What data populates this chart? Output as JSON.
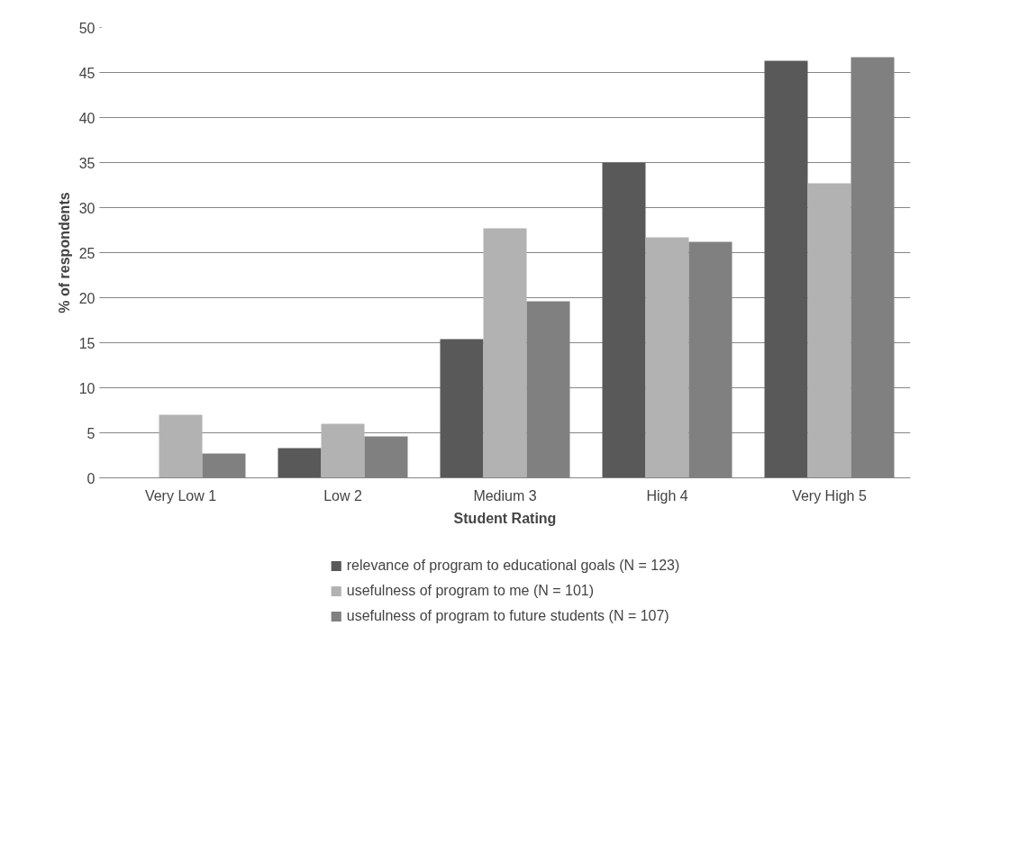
{
  "chart_data": {
    "type": "bar",
    "xlabel": "Student Rating",
    "ylabel": "% of respondents",
    "categories": [
      "Very Low 1",
      "Low 2",
      "Medium 3",
      "High 4",
      "Very High 5"
    ],
    "series": [
      {
        "name": "relevance of program to educational goals (N = 123)",
        "color": "#595959",
        "values": [
          0,
          3.3,
          15.4,
          35.0,
          46.3
        ]
      },
      {
        "name": "usefulness of program to me (N = 101)",
        "color": "#b2b2b2",
        "values": [
          7.0,
          6.0,
          27.7,
          26.7,
          32.7
        ]
      },
      {
        "name": "usefulness of program to future students (N = 107)",
        "color": "#808080",
        "values": [
          2.7,
          4.6,
          19.6,
          26.2,
          46.7
        ]
      }
    ],
    "ylim": [
      0,
      50
    ],
    "yticks": [
      0,
      5,
      10,
      15,
      20,
      25,
      30,
      35,
      40,
      45,
      50
    ],
    "grid": "y",
    "legend": "bottom"
  }
}
